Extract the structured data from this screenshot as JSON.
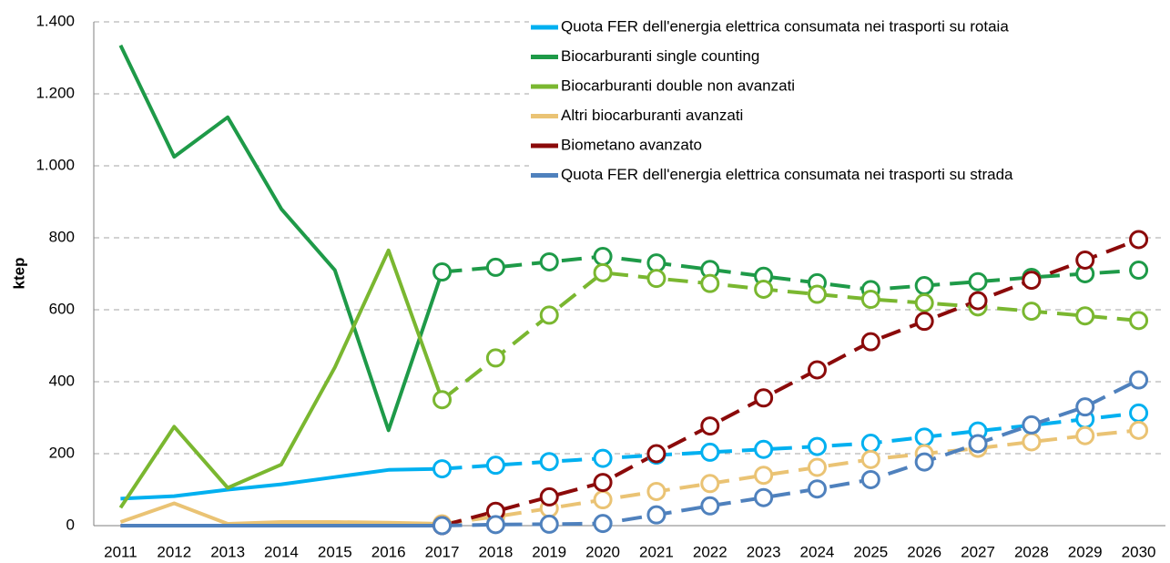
{
  "chart_data": {
    "type": "line",
    "ylabel": "ktep",
    "categories": [
      "2011",
      "2012",
      "2013",
      "2014",
      "2015",
      "2016",
      "2017",
      "2018",
      "2019",
      "2020",
      "2021",
      "2022",
      "2023",
      "2024",
      "2025",
      "2026",
      "2027",
      "2028",
      "2029",
      "2030"
    ],
    "forecast_start": "2017",
    "ylim": [
      0,
      1400
    ],
    "yticks": [
      0,
      200,
      400,
      600,
      800,
      {
        "value": 1000,
        "label": "1.000"
      },
      {
        "value": 1200,
        "label": "1.200"
      },
      {
        "value": 1400,
        "label": "1.400"
      }
    ],
    "grid": true,
    "legend": "upper right",
    "series": [
      {
        "name": "Quota FER dell'energia elettrica consumata nei trasporti su rotaia",
        "color": "#00b0f0",
        "values": [
          75,
          82,
          100,
          115,
          135,
          155,
          158,
          168,
          178,
          187,
          196,
          204,
          212,
          220,
          229,
          246,
          263,
          279,
          296,
          313
        ]
      },
      {
        "name": "Biocarburanti single counting",
        "color": "#1e9a48",
        "values": [
          1335,
          1025,
          1135,
          880,
          710,
          265,
          705,
          718,
          733,
          748,
          730,
          712,
          693,
          675,
          656,
          667,
          678,
          690,
          700,
          710
        ]
      },
      {
        "name": "Biocarburanti double non avanzati",
        "color": "#7ab730",
        "values": [
          50,
          275,
          105,
          170,
          440,
          765,
          350,
          466,
          585,
          703,
          687,
          673,
          657,
          643,
          629,
          619,
          608,
          596,
          583,
          570
        ]
      },
      {
        "name": "Altri biocarburanti avanzati",
        "color": "#eac374",
        "values": [
          10,
          62,
          5,
          10,
          10,
          8,
          5,
          25,
          48,
          72,
          95,
          117,
          140,
          162,
          184,
          200,
          215,
          233,
          250,
          265
        ]
      },
      {
        "name": "Biometano avanzato",
        "color": "#8b0a0a",
        "values": [
          0,
          0,
          0,
          0,
          0,
          0,
          0,
          40,
          80,
          120,
          200,
          277,
          355,
          433,
          511,
          568,
          625,
          682,
          738,
          795
        ]
      },
      {
        "name": "Quota FER dell'energia elettrica consumata nei trasporti su strada",
        "color": "#4f81bd",
        "values": [
          0,
          0,
          0,
          0,
          0,
          0,
          0,
          3,
          4,
          6,
          30,
          55,
          78,
          102,
          128,
          177,
          228,
          280,
          330,
          405
        ]
      }
    ]
  }
}
